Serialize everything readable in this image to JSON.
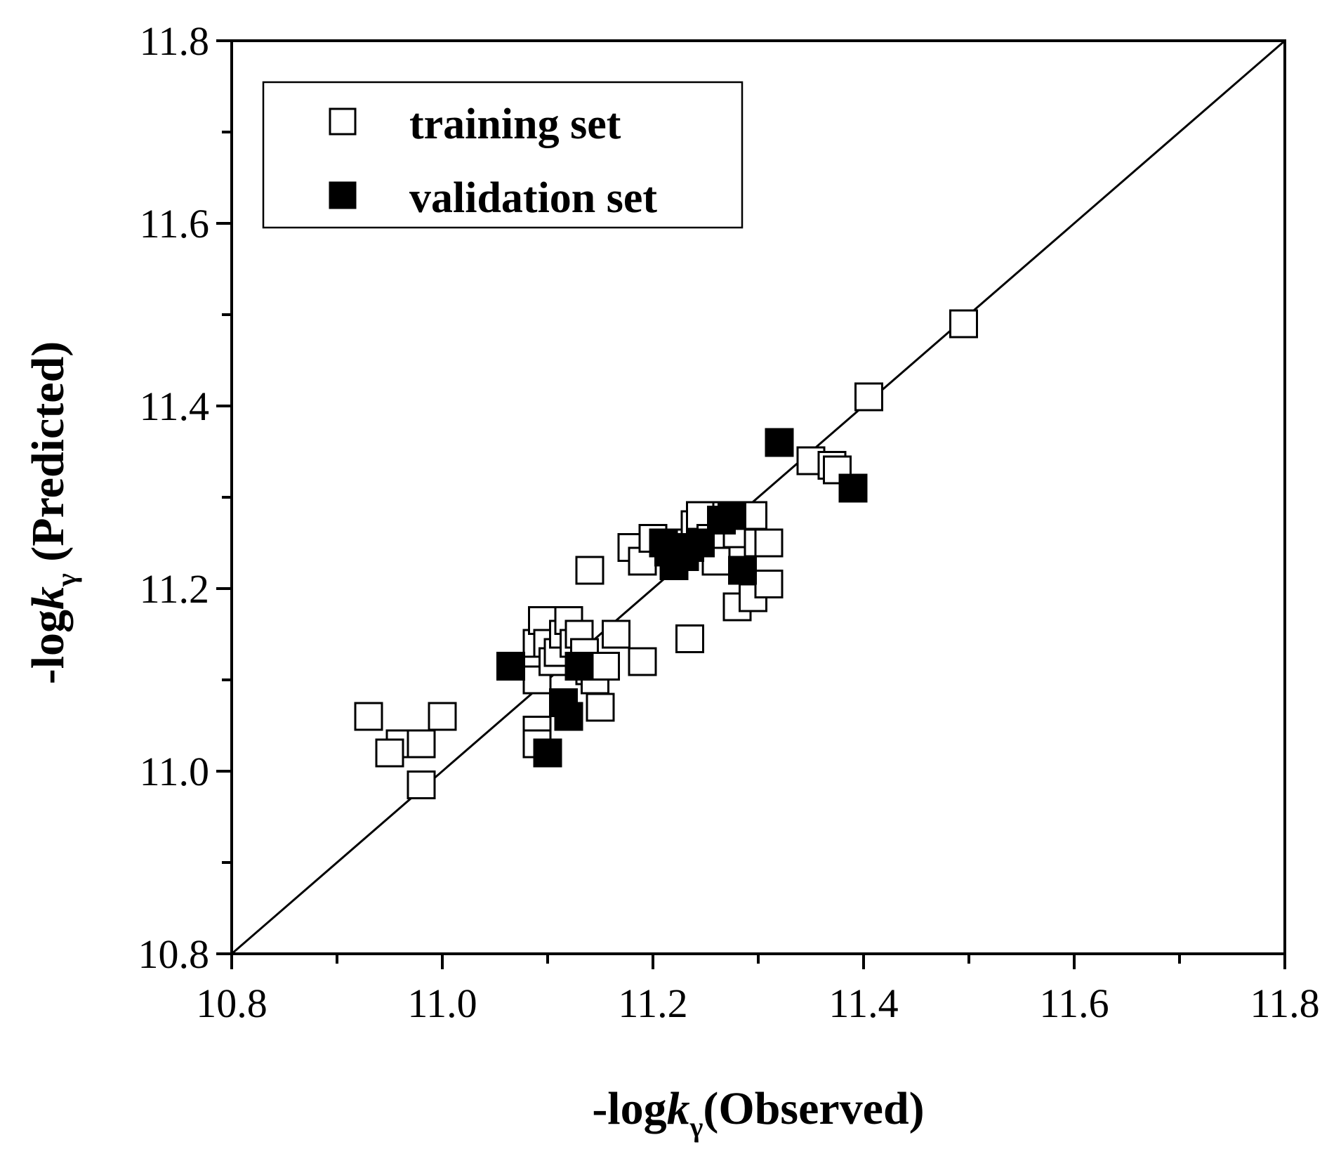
{
  "chart_data": {
    "type": "scatter",
    "title": "",
    "xlabel": {
      "prefix": "-log",
      "italic": "k",
      "sub": "γ",
      "suffix": "(Observed)"
    },
    "ylabel": {
      "prefix": "-log",
      "italic": "k",
      "sub": "γ",
      "suffix": " (Predicted)"
    },
    "xlim": [
      10.8,
      11.8
    ],
    "ylim": [
      10.8,
      11.8
    ],
    "x_ticks": [
      "10.8",
      "11.0",
      "11.2",
      "11.4",
      "11.6",
      "11.8"
    ],
    "y_ticks": [
      "10.8",
      "11.0",
      "11.2",
      "11.4",
      "11.6",
      "11.8"
    ],
    "reference_line": {
      "from": [
        10.8,
        10.8
      ],
      "to": [
        11.8,
        11.8
      ]
    },
    "grid": false,
    "legend_position": "top-left",
    "series": [
      {
        "name": "training set",
        "marker": "open-square",
        "points": [
          [
            10.93,
            11.06
          ],
          [
            10.96,
            11.03
          ],
          [
            10.95,
            11.02
          ],
          [
            10.98,
            11.03
          ],
          [
            11.0,
            11.06
          ],
          [
            10.98,
            10.985
          ],
          [
            11.09,
            11.045
          ],
          [
            11.09,
            11.03
          ],
          [
            11.09,
            11.1
          ],
          [
            11.09,
            11.14
          ],
          [
            11.095,
            11.165
          ],
          [
            11.1,
            11.14
          ],
          [
            11.105,
            11.12
          ],
          [
            11.11,
            11.13
          ],
          [
            11.115,
            11.15
          ],
          [
            11.12,
            11.165
          ],
          [
            11.125,
            11.14
          ],
          [
            11.13,
            11.15
          ],
          [
            11.135,
            11.13
          ],
          [
            11.14,
            11.11
          ],
          [
            11.145,
            11.1
          ],
          [
            11.15,
            11.07
          ],
          [
            11.155,
            11.115
          ],
          [
            11.165,
            11.15
          ],
          [
            11.14,
            11.22
          ],
          [
            11.18,
            11.245
          ],
          [
            11.19,
            11.23
          ],
          [
            11.19,
            11.12
          ],
          [
            11.2,
            11.255
          ],
          [
            11.22,
            11.25
          ],
          [
            11.235,
            11.145
          ],
          [
            11.24,
            11.27
          ],
          [
            11.245,
            11.28
          ],
          [
            11.255,
            11.255
          ],
          [
            11.26,
            11.23
          ],
          [
            11.27,
            11.28
          ],
          [
            11.28,
            11.26
          ],
          [
            11.28,
            11.18
          ],
          [
            11.295,
            11.28
          ],
          [
            11.3,
            11.25
          ],
          [
            11.31,
            11.25
          ],
          [
            11.295,
            11.19
          ],
          [
            11.31,
            11.205
          ],
          [
            11.35,
            11.34
          ],
          [
            11.37,
            11.335
          ],
          [
            11.375,
            11.33
          ],
          [
            11.405,
            11.41
          ],
          [
            11.495,
            11.49
          ]
        ]
      },
      {
        "name": "validation set",
        "marker": "filled-square",
        "points": [
          [
            11.065,
            11.115
          ],
          [
            11.1,
            11.02
          ],
          [
            11.115,
            11.075
          ],
          [
            11.12,
            11.06
          ],
          [
            11.13,
            11.115
          ],
          [
            11.21,
            11.25
          ],
          [
            11.215,
            11.24
          ],
          [
            11.22,
            11.225
          ],
          [
            11.23,
            11.235
          ],
          [
            11.235,
            11.245
          ],
          [
            11.245,
            11.25
          ],
          [
            11.265,
            11.275
          ],
          [
            11.275,
            11.28
          ],
          [
            11.285,
            11.22
          ],
          [
            11.32,
            11.36
          ],
          [
            11.39,
            11.31
          ]
        ]
      }
    ]
  }
}
